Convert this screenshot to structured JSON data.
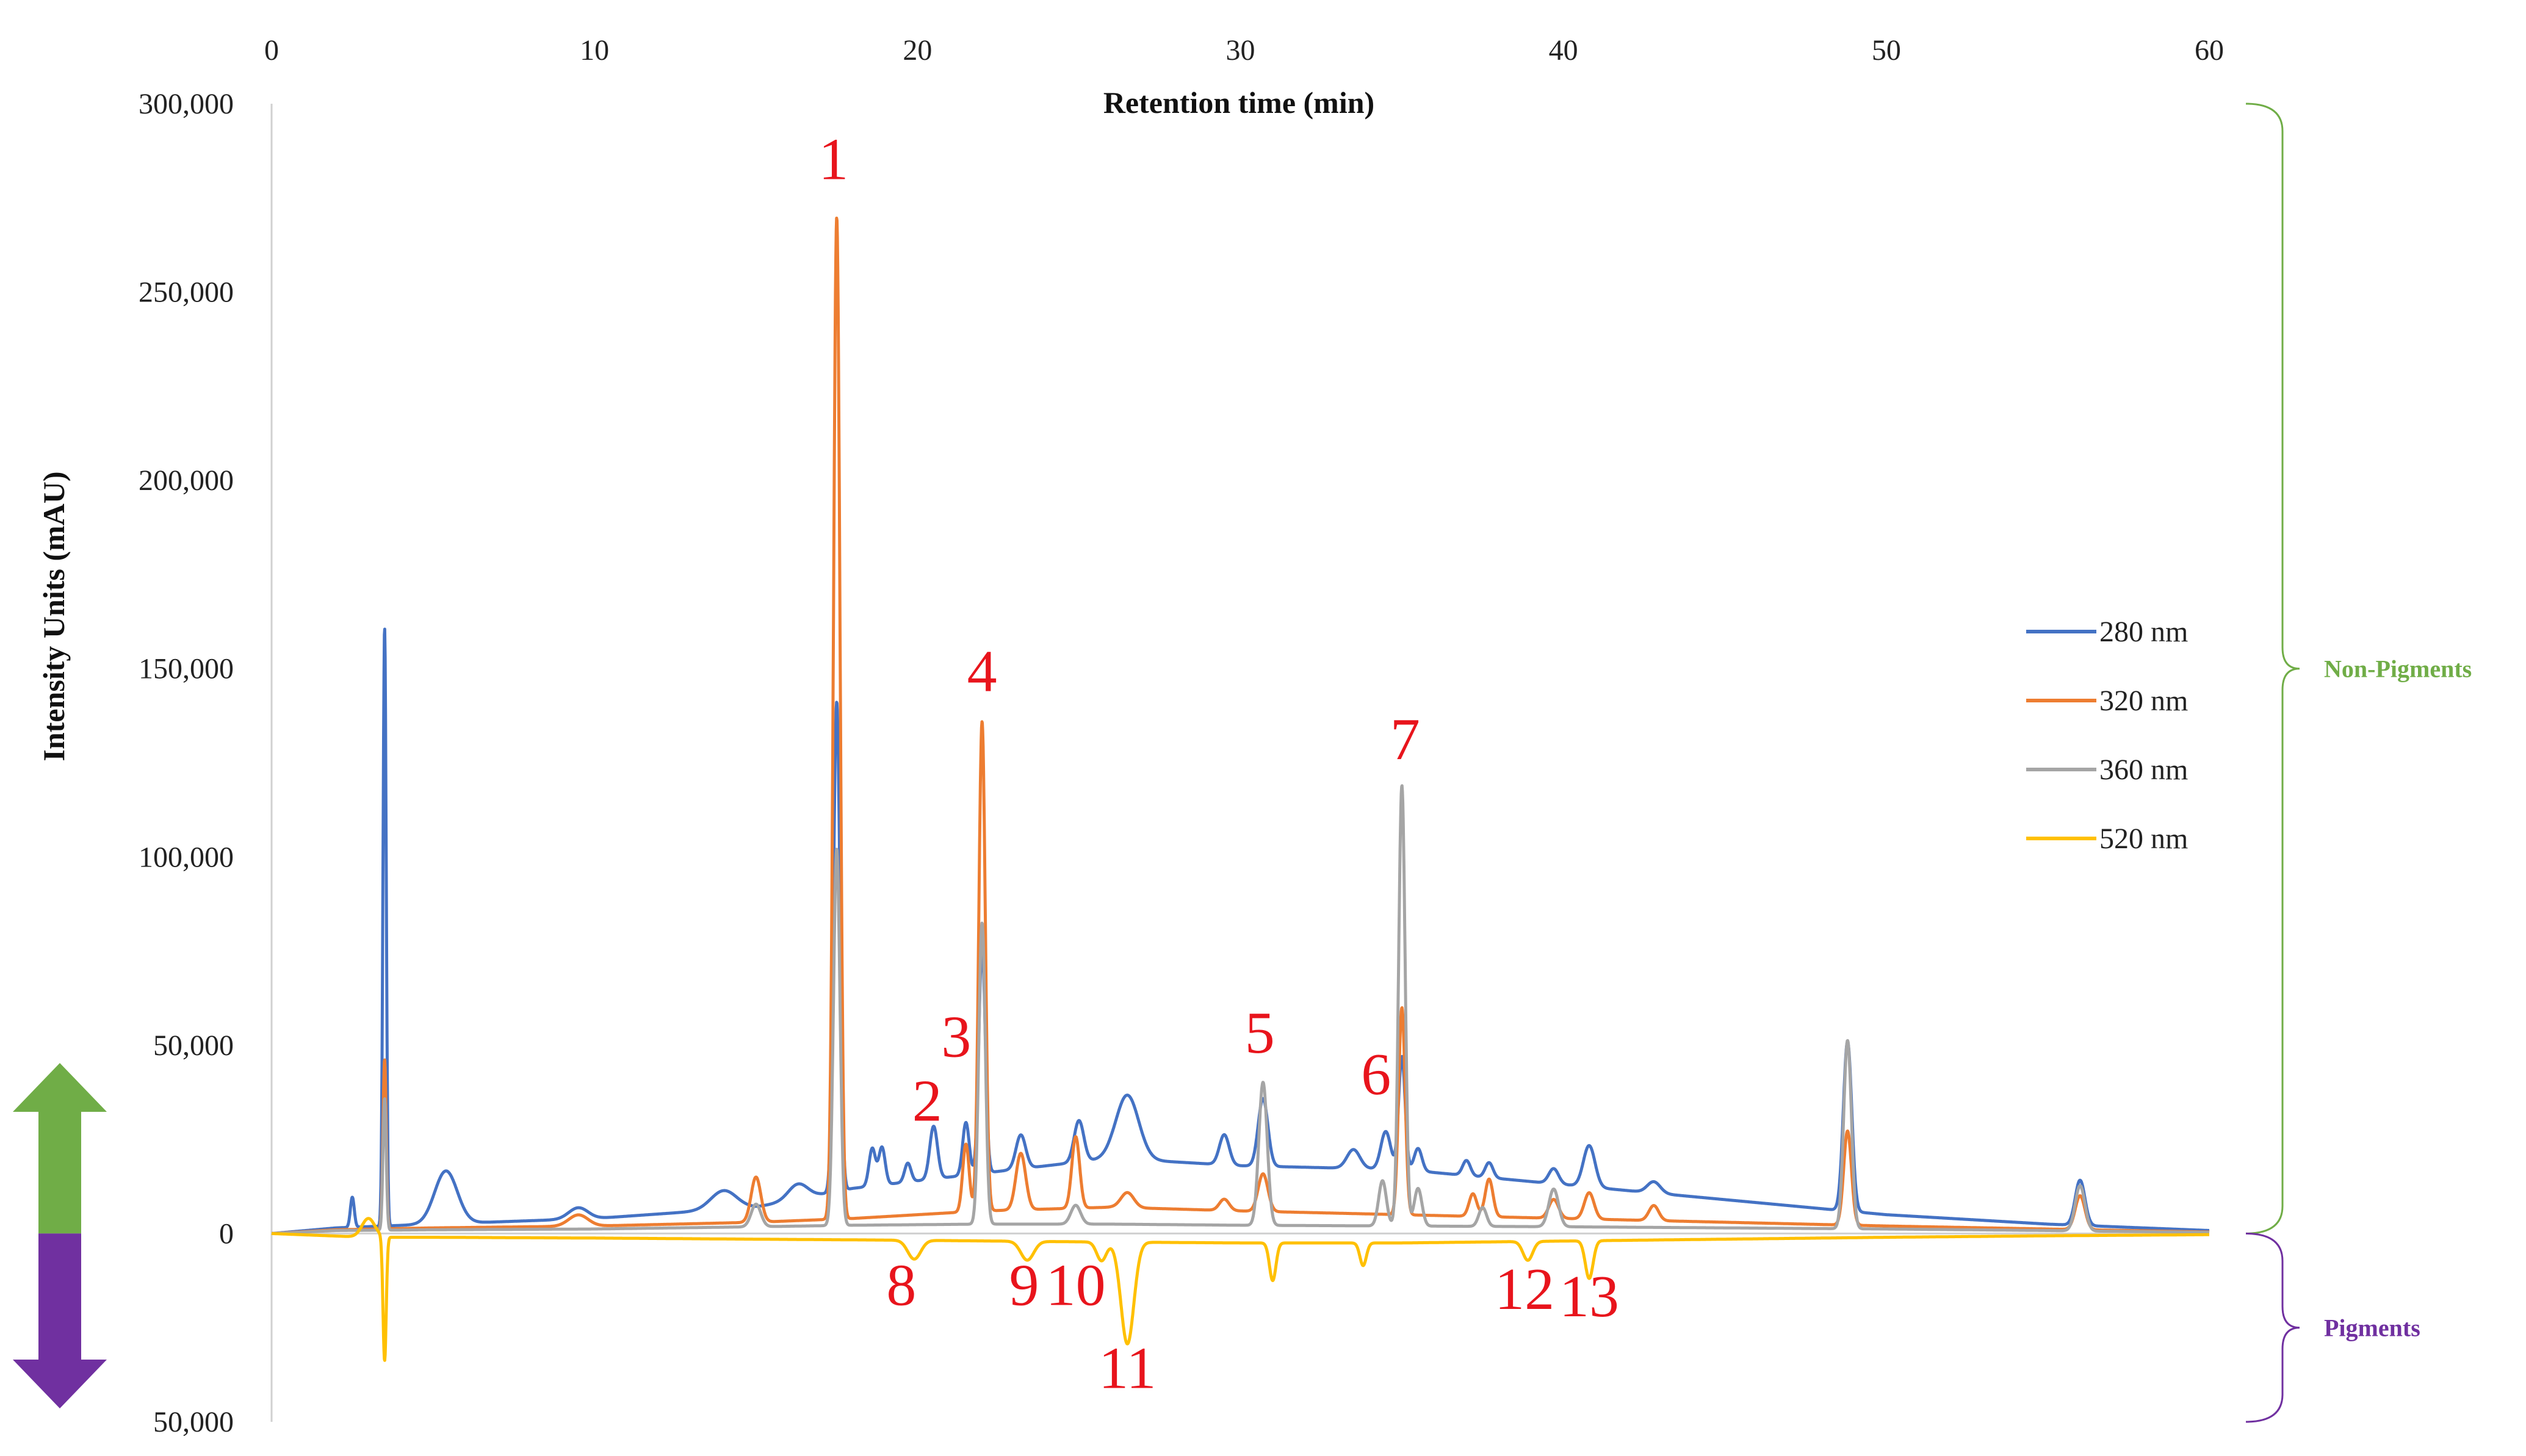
{
  "chart_data": {
    "type": "line",
    "xlabel": "Retention time (min)",
    "ylabel": "Intensity Units (mAU)",
    "xlim": [
      0,
      60
    ],
    "ylim": [
      -50000,
      300000
    ],
    "x_ticks": [
      "0",
      "10",
      "20",
      "30",
      "40",
      "50",
      "60"
    ],
    "y_ticks": [
      {
        "value": 300000,
        "label": "300,000"
      },
      {
        "value": 250000,
        "label": "250,000"
      },
      {
        "value": 200000,
        "label": "200,000"
      },
      {
        "value": 150000,
        "label": "150,000"
      },
      {
        "value": 100000,
        "label": "100,000"
      },
      {
        "value": 50000,
        "label": "50,000"
      },
      {
        "value": 0,
        "label": "0"
      },
      {
        "value": -50000,
        "label": "50,000"
      }
    ],
    "grid": false,
    "legend_position": "right",
    "series": [
      {
        "name": "280 nm",
        "color": "#4472c4",
        "baseline": [
          [
            0,
            0
          ],
          [
            2,
            1500
          ],
          [
            5,
            2500
          ],
          [
            10,
            4000
          ],
          [
            15,
            7000
          ],
          [
            18,
            12000
          ],
          [
            22,
            16000
          ],
          [
            26,
            20000
          ],
          [
            30,
            18000
          ],
          [
            35,
            17000
          ],
          [
            40,
            13000
          ],
          [
            45,
            9000
          ],
          [
            50,
            5000
          ],
          [
            55,
            2500
          ],
          [
            60,
            800
          ]
        ],
        "peaks": [
          [
            2.5,
            8000,
            0.06
          ],
          [
            3.5,
            159000,
            0.05
          ],
          [
            5.4,
            14000,
            0.35
          ],
          [
            9.5,
            3000,
            0.3
          ],
          [
            14,
            5000,
            0.4
          ],
          [
            16.3,
            4000,
            0.3
          ],
          [
            17.5,
            130000,
            0.1
          ],
          [
            18.6,
            10000,
            0.1
          ],
          [
            18.9,
            10000,
            0.1
          ],
          [
            19.7,
            5000,
            0.1
          ],
          [
            20.5,
            14000,
            0.12
          ],
          [
            21.5,
            14000,
            0.1
          ],
          [
            22,
            60000,
            0.1
          ],
          [
            23.2,
            9000,
            0.15
          ],
          [
            25,
            11000,
            0.15
          ],
          [
            26.5,
            17000,
            0.35
          ],
          [
            29.5,
            8000,
            0.15
          ],
          [
            30.7,
            18000,
            0.15
          ],
          [
            33.5,
            5000,
            0.2
          ],
          [
            34.5,
            10000,
            0.15
          ],
          [
            35,
            30000,
            0.1
          ],
          [
            35.5,
            6000,
            0.12
          ],
          [
            37,
            4000,
            0.12
          ],
          [
            37.7,
            4000,
            0.12
          ],
          [
            39.7,
            4000,
            0.15
          ],
          [
            40.8,
            11000,
            0.18
          ],
          [
            42.8,
            3000,
            0.2
          ],
          [
            48.8,
            45000,
            0.13
          ],
          [
            56,
            12000,
            0.15
          ]
        ]
      },
      {
        "name": "320 nm",
        "color": "#ed7d31",
        "baseline": [
          [
            0,
            0
          ],
          [
            2,
            1000
          ],
          [
            5,
            1500
          ],
          [
            10,
            2000
          ],
          [
            15,
            3000
          ],
          [
            18,
            4000
          ],
          [
            22,
            6000
          ],
          [
            26,
            7000
          ],
          [
            30,
            6000
          ],
          [
            35,
            5000
          ],
          [
            40,
            4000
          ],
          [
            45,
            3000
          ],
          [
            50,
            2000
          ],
          [
            55,
            1200
          ],
          [
            60,
            400
          ]
        ],
        "peaks": [
          [
            3.5,
            45000,
            0.05
          ],
          [
            9.5,
            3000,
            0.3
          ],
          [
            15,
            12000,
            0.15
          ],
          [
            17.5,
            266000,
            0.1
          ],
          [
            21.5,
            18000,
            0.1
          ],
          [
            22,
            130000,
            0.1
          ],
          [
            23.2,
            15000,
            0.15
          ],
          [
            24.9,
            19000,
            0.12
          ],
          [
            26.5,
            4000,
            0.2
          ],
          [
            29.5,
            3000,
            0.15
          ],
          [
            30.7,
            10000,
            0.15
          ],
          [
            35,
            55000,
            0.1
          ],
          [
            37.2,
            6000,
            0.12
          ],
          [
            37.7,
            10000,
            0.12
          ],
          [
            39.7,
            5000,
            0.15
          ],
          [
            40.8,
            7000,
            0.15
          ],
          [
            42.8,
            4000,
            0.15
          ],
          [
            48.8,
            25000,
            0.12
          ],
          [
            56,
            9000,
            0.15
          ]
        ]
      },
      {
        "name": "360 nm",
        "color": "#a5a5a5",
        "baseline": [
          [
            0,
            0
          ],
          [
            2,
            800
          ],
          [
            5,
            1000
          ],
          [
            10,
            1200
          ],
          [
            15,
            1800
          ],
          [
            18,
            2200
          ],
          [
            22,
            2500
          ],
          [
            26,
            2500
          ],
          [
            30,
            2200
          ],
          [
            35,
            2000
          ],
          [
            40,
            1800
          ],
          [
            45,
            1500
          ],
          [
            50,
            1200
          ],
          [
            55,
            800
          ],
          [
            60,
            300
          ]
        ],
        "peaks": [
          [
            3.5,
            35000,
            0.05
          ],
          [
            15,
            6000,
            0.15
          ],
          [
            17.5,
            100000,
            0.1
          ],
          [
            22,
            80000,
            0.1
          ],
          [
            24.9,
            5000,
            0.15
          ],
          [
            30.7,
            38000,
            0.13
          ],
          [
            34.4,
            12000,
            0.12
          ],
          [
            35,
            117000,
            0.1
          ],
          [
            35.5,
            10000,
            0.12
          ],
          [
            37.5,
            5000,
            0.12
          ],
          [
            39.7,
            10000,
            0.15
          ],
          [
            48.8,
            50000,
            0.12
          ],
          [
            56,
            12000,
            0.15
          ]
        ]
      },
      {
        "name": "520 nm",
        "color": "#ffc000",
        "baseline": [
          [
            0,
            0
          ],
          [
            3,
            -1000
          ],
          [
            5,
            -1000
          ],
          [
            10,
            -1200
          ],
          [
            15,
            -1500
          ],
          [
            20,
            -1800
          ],
          [
            25,
            -2200
          ],
          [
            30,
            -2500
          ],
          [
            35,
            -2500
          ],
          [
            40,
            -2000
          ],
          [
            45,
            -1500
          ],
          [
            50,
            -1000
          ],
          [
            55,
            -600
          ],
          [
            60,
            -300
          ]
        ],
        "peaks": [
          [
            3,
            5000,
            0.2
          ],
          [
            3.5,
            -33000,
            0.05
          ],
          [
            19.9,
            -5000,
            0.2
          ],
          [
            23.4,
            -5000,
            0.2
          ],
          [
            25.7,
            -5000,
            0.15
          ],
          [
            26.5,
            -27000,
            0.2
          ],
          [
            31,
            -10000,
            0.1
          ],
          [
            33.8,
            -6000,
            0.1
          ],
          [
            38.9,
            -5000,
            0.15
          ],
          [
            40.8,
            -10000,
            0.12
          ]
        ]
      }
    ],
    "annotations": [
      {
        "text": "1",
        "x": 17.4,
        "y": 280000
      },
      {
        "text": "2",
        "x": 20.3,
        "y": 30000
      },
      {
        "text": "3",
        "x": 21.2,
        "y": 47000
      },
      {
        "text": "4",
        "x": 22.0,
        "y": 144000
      },
      {
        "text": "5",
        "x": 30.6,
        "y": 48000
      },
      {
        "text": "6",
        "x": 34.2,
        "y": 37000
      },
      {
        "text": "7",
        "x": 35.1,
        "y": 126000
      },
      {
        "text": "8",
        "x": 19.5,
        "y": -19000
      },
      {
        "text": "9",
        "x": 23.3,
        "y": -19000
      },
      {
        "text": "10",
        "x": 24.9,
        "y": -19000
      },
      {
        "text": "11",
        "x": 26.5,
        "y": -41000
      },
      {
        "text": "12",
        "x": 38.8,
        "y": -20000
      },
      {
        "text": "13",
        "x": 40.8,
        "y": -22000
      }
    ],
    "regions": [
      {
        "label": "Non-Pigments",
        "color": "#70ad47",
        "from": 0,
        "to": 300000,
        "arrow": "up"
      },
      {
        "label": "Pigments",
        "color": "#7030a0",
        "from": -50000,
        "to": 0,
        "arrow": "down"
      }
    ]
  }
}
